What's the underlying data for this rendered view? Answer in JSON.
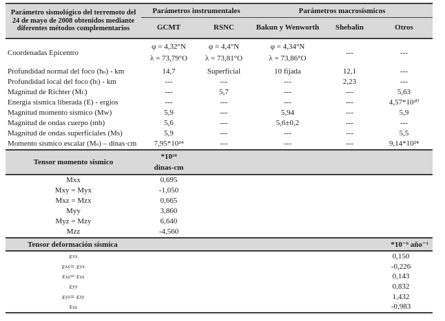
{
  "colors": {
    "header_bg": "#D9D9D9",
    "border": "#3e3e3e",
    "text": "#1b1b1b"
  },
  "table": {
    "corner_header": "Parámetro sismológico del terremoto del 24 de mayo de 2008 obtenidos mediante diferentes métodos complementarios",
    "group_headers": [
      "Parámetros instrumentales",
      "Parámetros macrosísmicos"
    ],
    "column_headers": [
      "GCMT",
      "RSNC",
      "Bakun y Wenworth",
      "Shebalin",
      "Otros"
    ],
    "coordinates_row": {
      "label": "Coordenadas Epicentro",
      "cells": [
        {
          "line1": "φ = 4,32°N",
          "line2": "λ = 73,79°O"
        },
        {
          "line1": "φ = 4,4°N",
          "line2": "λ = 73,81°O"
        },
        {
          "line1": "φ = 4,34°N",
          "line2": "λ = 73,86°O"
        },
        {
          "line1": "---",
          "line2": ""
        },
        {
          "line1": "---",
          "line2": ""
        }
      ]
    },
    "rows": [
      {
        "label_pre": "Profundidad normal del foco (h",
        "label_sub": "n",
        "label_post": ") - km",
        "cells": [
          "14,7",
          "Superficial",
          "10 fijada",
          "12,1",
          "---"
        ]
      },
      {
        "label_pre": "Profundidad local del foco (h",
        "label_sub": "l",
        "label_post": ") - km",
        "cells": [
          "---",
          "---",
          "---",
          "2,23",
          "---"
        ]
      },
      {
        "label_pre": "Magnitud de Richter (M",
        "label_sub": "L",
        "label_post": ")",
        "cells": [
          "---",
          "5,7",
          "---",
          "---",
          "5,63"
        ]
      },
      {
        "label_pre": "Energía sísmica liberada (E) - ergios",
        "label_sub": "",
        "label_post": "",
        "cells": [
          "---",
          "---",
          "---",
          "---",
          "4,57*10²⁰"
        ]
      },
      {
        "label_pre": "Magnitud momento sísmico (Mw)",
        "label_sub": "",
        "label_post": "",
        "cells": [
          "5,9",
          "---",
          "5,94",
          "---",
          "5,9"
        ]
      },
      {
        "label_pre": "Magnitud de ondas cuerpo (mb)",
        "label_sub": "",
        "label_post": "",
        "cells": [
          "5,6",
          "---",
          "5,6±0,2",
          "---",
          "---"
        ]
      },
      {
        "label_pre": "Magnitud de ondas superficiales (Ms)",
        "label_sub": "",
        "label_post": "",
        "cells": [
          "5,9",
          "---",
          "---",
          "---",
          "5,5"
        ]
      },
      {
        "label_pre": "Momento sísmico escalar (M",
        "label_sub": "o",
        "label_post": ") – dinas·cm",
        "cells": [
          "7,95*10²⁴",
          "---",
          "---",
          "---",
          "9,14*10²⁴"
        ]
      }
    ]
  },
  "moment_tensor": {
    "title": "Tensor momento sísmico",
    "unit_line1": "*10²⁴",
    "unit_line2": "dinas-cm",
    "rows": [
      {
        "label": "Mxx",
        "value": "0,695"
      },
      {
        "label": "Mxy = Myx",
        "value": "-1,050"
      },
      {
        "label": "Mxz = Mzx",
        "value": "0,665"
      },
      {
        "label": "Myy",
        "value": "3,860"
      },
      {
        "label": "Myz = Mzy",
        "value": "6,640"
      },
      {
        "label": "Mzz",
        "value": "-4,560"
      }
    ]
  },
  "strain_tensor": {
    "title": "Tensor deformación sísmica",
    "unit": "*10⁻⁶ año⁻¹",
    "rows": [
      {
        "p1": "ε",
        "s1": "xx",
        "p2": "",
        "s2": "",
        "value": "0,150"
      },
      {
        "p1": "ε",
        "s1": "xy",
        "p2": " = ε",
        "s2": "yx",
        "value": "-0,226"
      },
      {
        "p1": "ε",
        "s1": "xz",
        "p2": " = ε",
        "s2": "zx",
        "value": "0,143"
      },
      {
        "p1": "ε",
        "s1": "yy",
        "p2": "",
        "s2": "",
        "value": "0,832"
      },
      {
        "p1": "ε",
        "s1": "yz",
        "p2": " = ε",
        "s2": "zy",
        "value": "1,432"
      },
      {
        "p1": "ε",
        "s1": "zz",
        "p2": "",
        "s2": "",
        "value": "-0,983"
      }
    ]
  }
}
